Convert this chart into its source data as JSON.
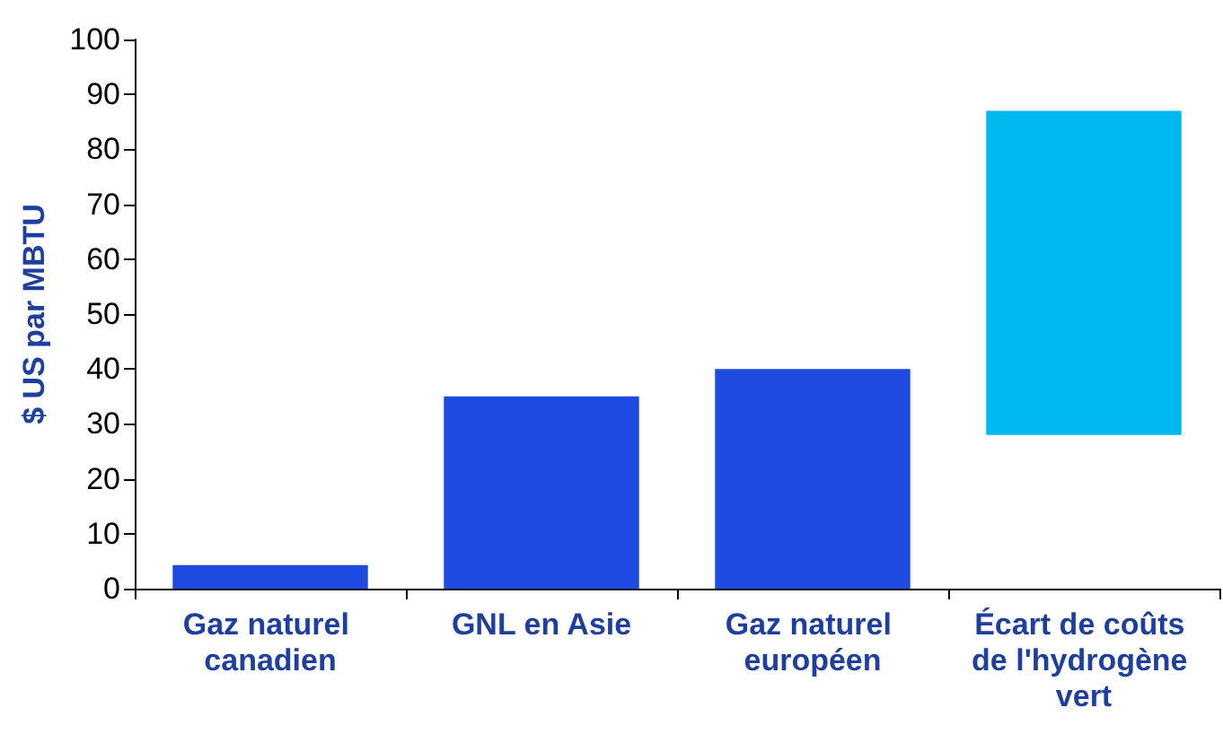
{
  "chart_data": {
    "type": "bar",
    "ylabel": "$ US par MBTU",
    "categories": [
      "Gaz naturel canadien",
      "GNL en Asie",
      "Gaz naturel européen",
      "Écart de coûts de l'hydrogène vert"
    ],
    "values": [
      4.3,
      35,
      40,
      59
    ],
    "base": [
      0,
      0,
      0,
      28
    ],
    "colors": [
      "#1f4ae0",
      "#1f4ae0",
      "#1f4ae0",
      "#00b8f0"
    ],
    "ylim": [
      0,
      100
    ],
    "yticks": [
      0,
      10,
      20,
      30,
      40,
      50,
      60,
      70,
      80,
      90,
      100
    ]
  }
}
